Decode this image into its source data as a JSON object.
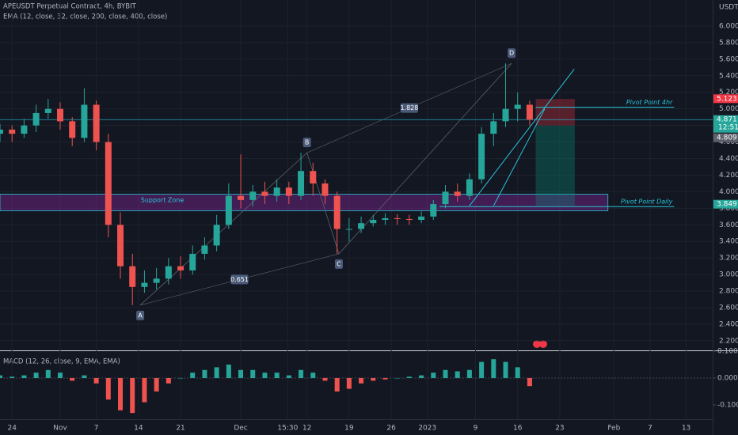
{
  "chart_data": {
    "type": "candlestick",
    "title": "APEUSDT Perpetual Contract, 4h, BYBIT",
    "indicator": "EMA (12, close, 32, close, 200, close, 400, close)",
    "currency": "USDT",
    "xlim": [
      -2,
      116.4
    ],
    "xticks": [
      {
        "value": 0,
        "label": "24"
      },
      {
        "value": 8,
        "label": "Nov"
      },
      {
        "value": 14,
        "label": "7"
      },
      {
        "value": 21,
        "label": "14"
      },
      {
        "value": 28,
        "label": "21"
      },
      {
        "value": 38,
        "label": "Dec"
      },
      {
        "value": 45.8,
        "label": "15:30"
      },
      {
        "value": 49,
        "label": "12"
      },
      {
        "value": 56,
        "label": "19"
      },
      {
        "value": 63,
        "label": "26"
      },
      {
        "value": 69,
        "label": "2023"
      },
      {
        "value": 77,
        "label": "9"
      },
      {
        "value": 84,
        "label": "16"
      },
      {
        "value": 91,
        "label": "23"
      },
      {
        "value": 100,
        "label": "Feb"
      },
      {
        "value": 106,
        "label": "7"
      },
      {
        "value": 112,
        "label": "13"
      }
    ],
    "ylim": [
      2.084,
      6.315
    ],
    "yticks": [
      {
        "value": 2.2,
        "label": "2.200"
      },
      {
        "value": 2.4,
        "label": "2.400"
      },
      {
        "value": 2.6,
        "label": "2.600"
      },
      {
        "value": 2.8,
        "label": "2.800"
      },
      {
        "value": 3.0,
        "label": "3.000"
      },
      {
        "value": 3.2,
        "label": "3.200"
      },
      {
        "value": 3.4,
        "label": "3.400"
      },
      {
        "value": 3.6,
        "label": "3.600"
      },
      {
        "value": 3.8,
        "label": "3.800"
      },
      {
        "value": 4.0,
        "label": "4.000"
      },
      {
        "value": 4.2,
        "label": "4.200"
      },
      {
        "value": 4.4,
        "label": "4.400"
      },
      {
        "value": 4.6,
        "label": "4.600"
      },
      {
        "value": 4.8,
        "label": "4.800"
      },
      {
        "value": 5.0,
        "label": "5.000"
      },
      {
        "value": 5.2,
        "label": "5.200"
      },
      {
        "value": 5.4,
        "label": "5.400"
      },
      {
        "value": 5.6,
        "label": "5.600"
      },
      {
        "value": 5.8,
        "label": "5.800"
      },
      {
        "value": 6.0,
        "label": "6.000"
      }
    ],
    "candles": {
      "up_color": "#26a69a",
      "down_color": "#ef5350",
      "x": [
        -2,
        0,
        2,
        4,
        6,
        8,
        10,
        12,
        14,
        16,
        18,
        20,
        22,
        24,
        26,
        28,
        30,
        32,
        34,
        36,
        38,
        40,
        42,
        44,
        46,
        48,
        50,
        52,
        54,
        56,
        58,
        60,
        62,
        64,
        66,
        68,
        70,
        72,
        74,
        76,
        78,
        80,
        82,
        84,
        86
      ],
      "open": [
        4.7,
        4.75,
        4.7,
        4.8,
        4.95,
        5.0,
        4.85,
        4.65,
        5.05,
        4.6,
        3.6,
        3.1,
        2.85,
        2.9,
        2.95,
        3.1,
        3.05,
        3.25,
        3.35,
        3.6,
        3.95,
        3.9,
        4.0,
        3.95,
        4.05,
        3.95,
        4.25,
        4.1,
        3.95,
        3.55,
        3.55,
        3.62,
        3.66,
        3.68,
        3.67,
        3.66,
        3.7,
        3.85,
        4.0,
        3.95,
        4.15,
        4.7,
        4.85,
        5.0,
        5.05
      ],
      "high": [
        4.82,
        4.8,
        4.88,
        5.05,
        5.12,
        5.08,
        4.9,
        5.25,
        5.1,
        4.7,
        3.75,
        3.25,
        3.05,
        3.08,
        3.2,
        3.22,
        3.35,
        3.45,
        3.72,
        4.1,
        4.45,
        4.08,
        4.12,
        4.15,
        4.12,
        4.47,
        4.35,
        4.15,
        4.0,
        3.68,
        3.7,
        3.72,
        3.74,
        3.73,
        3.72,
        3.76,
        3.9,
        4.08,
        4.1,
        4.22,
        4.78,
        4.95,
        5.55,
        5.2,
        5.1
      ],
      "low": [
        4.6,
        4.6,
        4.65,
        4.72,
        4.88,
        4.75,
        4.55,
        4.6,
        4.5,
        3.45,
        2.95,
        2.63,
        2.78,
        2.82,
        2.88,
        2.95,
        3.0,
        3.18,
        3.28,
        3.55,
        3.8,
        3.82,
        3.85,
        3.88,
        3.85,
        3.9,
        3.95,
        3.85,
        3.25,
        3.4,
        3.5,
        3.58,
        3.6,
        3.6,
        3.6,
        3.62,
        3.66,
        3.8,
        3.88,
        3.9,
        4.1,
        4.55,
        4.78,
        4.85,
        4.8
      ],
      "close": [
        4.75,
        4.7,
        4.8,
        4.95,
        5.0,
        4.85,
        4.65,
        5.05,
        4.6,
        3.6,
        3.1,
        2.85,
        2.9,
        2.95,
        3.1,
        3.05,
        3.25,
        3.35,
        3.6,
        3.95,
        3.9,
        4.0,
        3.95,
        4.05,
        3.95,
        4.25,
        4.1,
        3.95,
        3.55,
        3.55,
        3.62,
        3.66,
        3.68,
        3.67,
        3.66,
        3.7,
        3.85,
        4.0,
        3.95,
        4.15,
        4.7,
        4.85,
        5.0,
        5.05,
        4.87
      ]
    },
    "zone": {
      "name": "Support Zone",
      "low": 3.77,
      "high": 3.97,
      "x": [
        -2,
        99
      ],
      "color": "#9c27b0"
    },
    "levels": [
      {
        "name": "Pivot Point 4hr",
        "value": 5.02,
        "x": [
          87,
          110
        ],
        "color": "#26c6da"
      },
      {
        "name": "Pivot Point Daily",
        "value": 3.82,
        "x": [
          71,
          110
        ],
        "color": "#26c6da"
      }
    ],
    "trend_lines": [
      {
        "x": [
          76,
          93.4
        ],
        "y": [
          3.83,
          5.48
        ]
      },
      {
        "x": [
          80,
          88.5
        ],
        "y": [
          3.83,
          5.0
        ]
      }
    ],
    "position": {
      "x": [
        87,
        93.5
      ],
      "entry": 4.8,
      "stop": 5.12,
      "target": 3.83
    },
    "pattern": {
      "points": [
        {
          "label": "A",
          "x": 21.3,
          "y": 2.63
        },
        {
          "label": "B",
          "x": 49,
          "y": 4.47
        },
        {
          "label": "C",
          "x": 54.3,
          "y": 3.25
        },
        {
          "label": "D",
          "x": 83,
          "y": 5.55
        }
      ],
      "ratios": [
        0.651,
        1.828
      ]
    },
    "last_price": 4.871,
    "price_badges": [
      {
        "value": 5.123,
        "color": "#f23645"
      },
      {
        "value": 4.871,
        "color": "#26a69a",
        "countdown": "12:51"
      },
      {
        "value": 4.809,
        "color": "#5d606b"
      },
      {
        "value": 3.849,
        "color": "#26a69a"
      }
    ],
    "macd": {
      "title": "MACD (12, 26, close, 9, EMA, EMA)",
      "ylim": [
        -0.153,
        0.097
      ],
      "yticks": [
        {
          "value": 0.1,
          "label": "0.100"
        },
        {
          "value": 0,
          "label": "0.000"
        },
        {
          "value": -0.1,
          "label": "-0.100"
        }
      ],
      "values": [
        0.01,
        0.005,
        0.01,
        0.02,
        0.03,
        0.02,
        -0.01,
        0.01,
        -0.02,
        -0.08,
        -0.12,
        -0.13,
        -0.09,
        -0.05,
        -0.02,
        0.0,
        0.02,
        0.03,
        0.04,
        0.05,
        0.03,
        0.03,
        0.02,
        0.02,
        0.01,
        0.03,
        0.02,
        -0.01,
        -0.05,
        -0.04,
        -0.02,
        -0.01,
        -0.005,
        0.0,
        0.005,
        0.01,
        0.02,
        0.03,
        0.025,
        0.03,
        0.06,
        0.07,
        0.06,
        0.04,
        -0.03
      ]
    }
  }
}
